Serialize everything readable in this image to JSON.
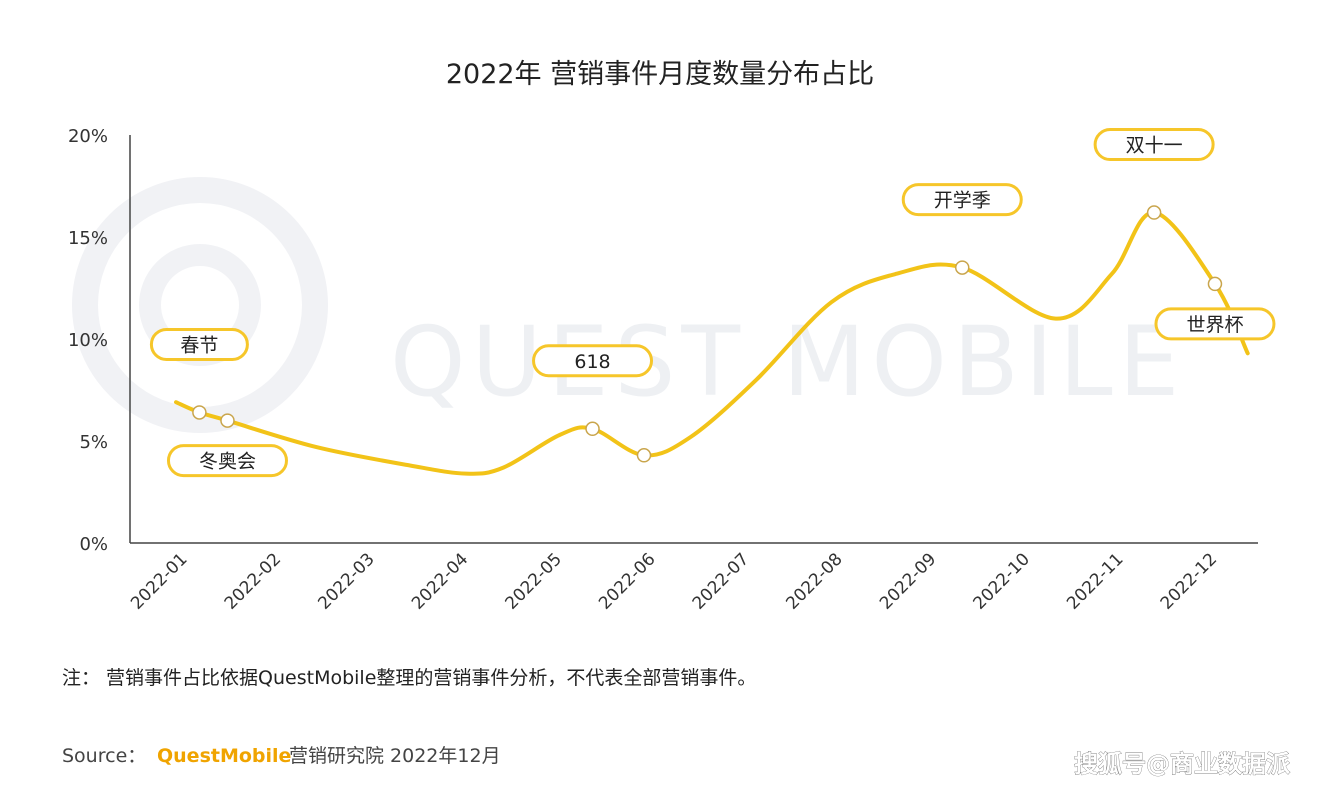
{
  "page": {
    "note": "注：  营销事件占比依据QuestMobile整理的营销事件分析，不代表全部营销事件。",
    "source_label": "Source：",
    "source_brand": "QuestMobile",
    "source_rest": "营销研究院 2022年12月",
    "background_watermark": "QUEST MOBILE",
    "corner_watermark": "搜狐号@商业数据派"
  },
  "colors": {
    "line": "#f2c318",
    "label_border": "#f6c62a",
    "axis": "#444444",
    "brand": "#f0a400",
    "watermark": "#eef0f3"
  },
  "chart_data": {
    "type": "line",
    "title": "2022年 营销事件月度数量分布占比",
    "xlabel": "",
    "ylabel": "",
    "categories": [
      "2022-01",
      "2022-02",
      "2022-03",
      "2022-04",
      "2022-05",
      "2022-06",
      "2022-07",
      "2022-08",
      "2022-09",
      "2022-10",
      "2022-11",
      "2022-12"
    ],
    "ylim": [
      0,
      20
    ],
    "yticks": [
      "0%",
      "5%",
      "10%",
      "15%",
      "20%"
    ],
    "yunit": "%",
    "grid": false,
    "legend": "none",
    "curve": [
      {
        "x": 0.0,
        "y": 6.9
      },
      {
        "x": 0.25,
        "y": 6.4
      },
      {
        "x": 0.55,
        "y": 6.0
      },
      {
        "x": 1.5,
        "y": 4.7
      },
      {
        "x": 2.5,
        "y": 3.8
      },
      {
        "x": 3.1,
        "y": 3.4
      },
      {
        "x": 3.5,
        "y": 3.7
      },
      {
        "x": 4.1,
        "y": 5.3
      },
      {
        "x": 4.45,
        "y": 5.6
      },
      {
        "x": 5.0,
        "y": 4.3
      },
      {
        "x": 5.5,
        "y": 5.2
      },
      {
        "x": 6.2,
        "y": 8.0
      },
      {
        "x": 7.0,
        "y": 11.8
      },
      {
        "x": 7.7,
        "y": 13.2
      },
      {
        "x": 8.4,
        "y": 13.5
      },
      {
        "x": 9.4,
        "y": 11.0
      },
      {
        "x": 10.0,
        "y": 13.2
      },
      {
        "x": 10.45,
        "y": 16.2
      },
      {
        "x": 11.1,
        "y": 12.7
      },
      {
        "x": 11.45,
        "y": 9.3
      }
    ],
    "events": [
      {
        "name": "春节",
        "x": 0.25,
        "y": 6.4,
        "label_side": "above"
      },
      {
        "name": "冬奥会",
        "x": 0.55,
        "y": 6.0,
        "label_side": "below"
      },
      {
        "name": "618",
        "x": 4.45,
        "y": 5.6,
        "label_side": "above"
      },
      {
        "name": "",
        "x": 5.0,
        "y": 4.3,
        "label_side": "none"
      },
      {
        "name": "开学季",
        "x": 8.4,
        "y": 13.5,
        "label_side": "above"
      },
      {
        "name": "双十一",
        "x": 10.45,
        "y": 16.2,
        "label_side": "above"
      },
      {
        "name": "世界杯",
        "x": 11.1,
        "y": 12.7,
        "label_side": "below"
      }
    ]
  }
}
